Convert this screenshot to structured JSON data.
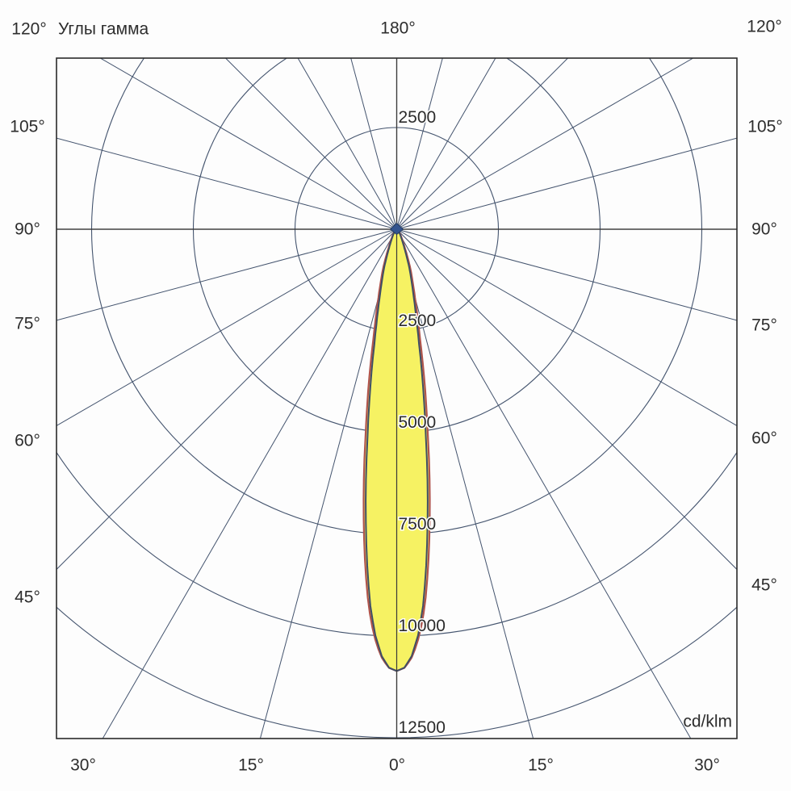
{
  "title": "Углы гамма",
  "units_label": "cd/klm",
  "labels": {
    "top_left": "120°",
    "top_center": "180°",
    "top_right": "120°",
    "left": [
      "105°",
      "90°",
      "75°",
      "60°",
      "45°"
    ],
    "right": [
      "105°",
      "90°",
      "75°",
      "60°",
      "45°"
    ],
    "bottom": [
      "30°",
      "15°",
      "0°",
      "15°",
      "30°"
    ]
  },
  "chart_data": {
    "type": "polar",
    "subtype": "luminous-intensity-distribution",
    "title": "Углы гамма",
    "units": "cd/klm",
    "angle_unit": "degrees (gamma), 0° at bottom nadir",
    "ray_step_deg": 15,
    "angle_labels_deg": [
      0,
      15,
      30,
      45,
      60,
      75,
      90,
      105,
      120,
      180
    ],
    "rings_cd_per_klm": [
      2500,
      5000,
      7500,
      10000,
      12500
    ],
    "ring_labels": [
      "2500",
      "5000",
      "7500",
      "10000",
      "12500"
    ],
    "top_ring_label": "2500",
    "max_intensity_cd_per_klm": 10860,
    "beam_peak_gamma_deg": 0,
    "legend_position": "none",
    "grid": true,
    "colors": {
      "grid": "#44546e",
      "axis": "#3a3a3a",
      "frame": "#2a2a2a",
      "beam_fill": "#f6f263",
      "beam_outline_inner": "#3f4e66",
      "beam_outline_outer": "#b0544c",
      "center_marker": "#33548f",
      "text": "#2d2d2d"
    },
    "profile": [
      {
        "gamma": 0,
        "value": 10860
      },
      {
        "gamma": 1,
        "value": 10780
      },
      {
        "gamma": 2,
        "value": 10500
      },
      {
        "gamma": 3,
        "value": 10000
      },
      {
        "gamma": 4,
        "value": 9280
      },
      {
        "gamma": 5,
        "value": 8300
      },
      {
        "gamma": 6,
        "value": 7250
      },
      {
        "gamma": 7,
        "value": 6200
      },
      {
        "gamma": 8,
        "value": 5150
      },
      {
        "gamma": 9,
        "value": 4300
      },
      {
        "gamma": 10,
        "value": 3550
      },
      {
        "gamma": 11,
        "value": 2870
      },
      {
        "gamma": 12,
        "value": 2400
      },
      {
        "gamma": 13,
        "value": 2030
      },
      {
        "gamma": 14,
        "value": 1740
      },
      {
        "gamma": 15,
        "value": 1500
      },
      {
        "gamma": 16,
        "value": 1310
      },
      {
        "gamma": 18,
        "value": 1000
      },
      {
        "gamma": 20,
        "value": 700
      },
      {
        "gamma": 22,
        "value": 500
      },
      {
        "gamma": 24,
        "value": 380
      },
      {
        "gamma": 26,
        "value": 300
      },
      {
        "gamma": 28,
        "value": 240
      },
      {
        "gamma": 30,
        "value": 195
      },
      {
        "gamma": 35,
        "value": 120
      },
      {
        "gamma": 40,
        "value": 80
      },
      {
        "gamma": 50,
        "value": 40
      },
      {
        "gamma": 60,
        "value": 20
      },
      {
        "gamma": 75,
        "value": 10
      },
      {
        "gamma": 90,
        "value": 5
      }
    ]
  }
}
